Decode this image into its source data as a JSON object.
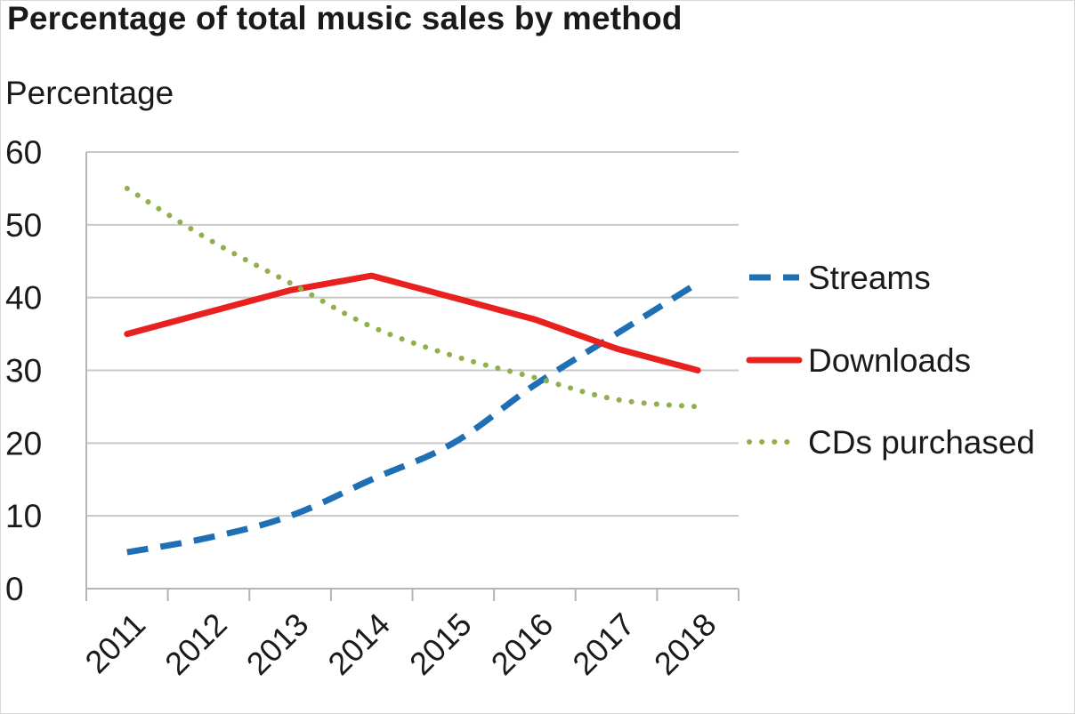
{
  "chart_data": {
    "type": "line",
    "title": "Percentage of total music sales by method",
    "ylabel": "Percentage",
    "xlabel": "",
    "categories": [
      "2011",
      "2012",
      "2013",
      "2014",
      "2015",
      "2016",
      "2017",
      "2018"
    ],
    "ylim": [
      0,
      60
    ],
    "yticks": [
      "0",
      "10",
      "20",
      "30",
      "40",
      "50",
      "60"
    ],
    "grid": true,
    "legend_position": "right",
    "series": [
      {
        "name": "Streams",
        "values": [
          5,
          7,
          10,
          15,
          20,
          28,
          35,
          42
        ],
        "color": "#1f6fb5",
        "style": "dashed"
      },
      {
        "name": "Downloads",
        "values": [
          35,
          38,
          41,
          43,
          40,
          37,
          33,
          30
        ],
        "color": "#e8201e",
        "style": "solid"
      },
      {
        "name": "CDs purchased",
        "values": [
          55,
          48,
          42,
          36,
          32,
          29,
          26,
          25
        ],
        "color": "#8fb04d",
        "style": "dotted"
      }
    ]
  }
}
